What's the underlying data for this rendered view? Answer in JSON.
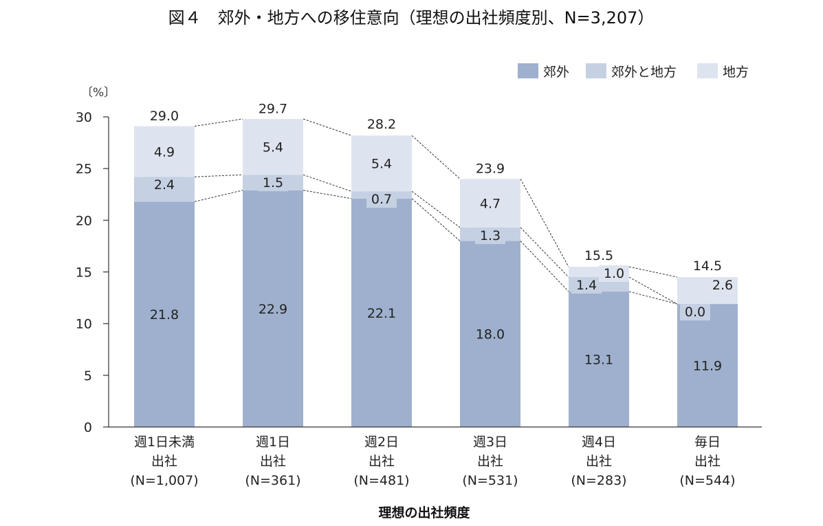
{
  "chart_data": {
    "type": "bar",
    "stacked": true,
    "title": "図４　郊外・地方への移住意向（理想の出社頻度別、N=3,207）",
    "unit": "〔%〕",
    "xlabel": "理想の出社頻度",
    "ylim": [
      0,
      30
    ],
    "yticks": [
      0,
      5,
      10,
      15,
      20,
      25,
      30
    ],
    "legend_position": "top-right",
    "categories": [
      [
        "週1日未満",
        "出社",
        "(N=1,007)"
      ],
      [
        "週1日",
        "出社",
        "(N=361)"
      ],
      [
        "週2日",
        "出社",
        "(N=481)"
      ],
      [
        "週3日",
        "出社",
        "(N=531)"
      ],
      [
        "週4日",
        "出社",
        "(N=283)"
      ],
      [
        "毎日",
        "出社",
        "(N=544)"
      ]
    ],
    "series": [
      {
        "name": "郊外",
        "color": "#9eb0cd",
        "values": [
          21.8,
          22.9,
          22.1,
          18.0,
          13.1,
          11.9
        ],
        "labels": [
          "21.8",
          "22.9",
          "22.1",
          "18.0",
          "13.1",
          "11.9"
        ]
      },
      {
        "name": "郊外と地方",
        "color": "#c5d0e3",
        "values": [
          2.4,
          1.5,
          0.7,
          1.3,
          1.4,
          0.0
        ],
        "labels": [
          "2.4",
          "1.5",
          "0.7",
          "1.3",
          "1.4",
          "0.0"
        ]
      },
      {
        "name": "地方",
        "color": "#dee4ef",
        "values": [
          4.9,
          5.4,
          5.4,
          4.7,
          1.0,
          2.6
        ],
        "labels": [
          "4.9",
          "5.4",
          "5.4",
          "4.7",
          "1.0",
          "2.6"
        ]
      }
    ],
    "totals": [
      29.0,
      29.7,
      28.2,
      23.9,
      15.5,
      14.5
    ],
    "total_labels": [
      "29.0",
      "29.7",
      "28.2",
      "23.9",
      "15.5",
      "14.5"
    ]
  }
}
